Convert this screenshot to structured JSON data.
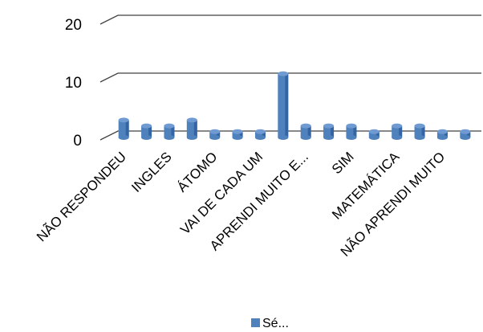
{
  "chart_data": {
    "type": "bar",
    "title": "",
    "xlabel": "",
    "ylabel": "",
    "ylim": [
      0,
      20
    ],
    "yticks": [
      "0",
      "10",
      "20"
    ],
    "grid": true,
    "legend_position": "bottom",
    "colors": {
      "bar": "#4f81bd",
      "bar_dark": "#1f4e8c",
      "grid": "#404040"
    },
    "categories": [
      "NÃO RESPONDEU",
      "",
      "INGLES",
      "",
      "ÁTOMO",
      "",
      "VAI DE CADA UM",
      "",
      "APRENDI MUITO E...",
      "",
      "SIM",
      "",
      "MATEMÁTICA",
      "",
      "NÃO APRENDI MUITO",
      ""
    ],
    "series": [
      {
        "name": "Sé...",
        "values": [
          3,
          2,
          2,
          3,
          1,
          1,
          1,
          11,
          2,
          2,
          2,
          1,
          2,
          2,
          1,
          1
        ]
      }
    ]
  }
}
